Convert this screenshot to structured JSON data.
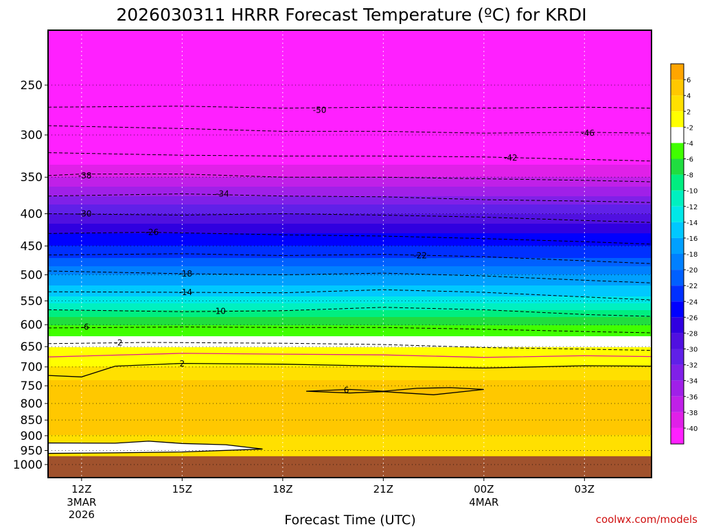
{
  "chart_data": {
    "type": "heatmap",
    "title": "2026030311 HRRR Forecast Temperature (ºC) for KRDI",
    "xlabel": "Forecast Time (UTC)",
    "ylabel": "",
    "credit": "coolwx.com/models",
    "y_scale": "log-pressure",
    "y_direction": "pressure decreasing upward",
    "ylim": [
      1050,
      200
    ],
    "y_ticks": [
      250,
      300,
      350,
      400,
      450,
      500,
      550,
      600,
      650,
      700,
      750,
      800,
      850,
      900,
      950,
      1000
    ],
    "x_ticks": [
      {
        "label": "12Z",
        "date_line1": "3MAR",
        "date_line2": "2026",
        "hours": 0
      },
      {
        "label": "15Z",
        "date_line1": "",
        "date_line2": "",
        "hours": 3
      },
      {
        "label": "18Z",
        "date_line1": "",
        "date_line2": "",
        "hours": 6
      },
      {
        "label": "21Z",
        "date_line1": "",
        "date_line2": "",
        "hours": 9
      },
      {
        "label": "00Z",
        "date_line1": "4MAR",
        "date_line2": "",
        "hours": 12
      },
      {
        "label": "03Z",
        "date_line1": "",
        "date_line2": "",
        "hours": 15
      }
    ],
    "xlim_hours": [
      -1,
      17
    ],
    "ground_pressure": 970,
    "grid": true,
    "colorbar": {
      "placement": "right",
      "levels": [
        "6",
        "4",
        "2",
        "-2",
        "-4",
        "-6",
        "-8",
        "-10",
        "-12",
        "-14",
        "-16",
        "-18",
        "-20",
        "-22",
        "-24",
        "-26",
        "-28",
        "-30",
        "-32",
        "-34",
        "-36",
        "-38",
        "-40"
      ],
      "colors": [
        "#ffa500",
        "#ffc800",
        "#ffe000",
        "#ffff00",
        "#ffffff",
        "#40ff00",
        "#20dd40",
        "#00ee80",
        "#00f0c0",
        "#00e8e8",
        "#00c8ff",
        "#00a0ff",
        "#0080ff",
        "#0060ff",
        "#0030ff",
        "#0000ff",
        "#3000e0",
        "#5010e0",
        "#6020e8",
        "#8020e8",
        "#a020e8",
        "#c020e8",
        "#e020e8",
        "#ff20ff"
      ]
    },
    "temperature_profile": [
      {
        "pressure": 1000,
        "temp": 4
      },
      {
        "pressure": 950,
        "temp": 3
      },
      {
        "pressure": 900,
        "temp": 4
      },
      {
        "pressure": 850,
        "temp": 4
      },
      {
        "pressure": 800,
        "temp": 4
      },
      {
        "pressure": 750,
        "temp": 5
      },
      {
        "pressure": 700,
        "temp": 2
      },
      {
        "pressure": 670,
        "temp": 0
      },
      {
        "pressure": 650,
        "temp": -2
      },
      {
        "pressure": 600,
        "temp": -6
      },
      {
        "pressure": 570,
        "temp": -10
      },
      {
        "pressure": 540,
        "temp": -14
      },
      {
        "pressure": 500,
        "temp": -18
      },
      {
        "pressure": 470,
        "temp": -22
      },
      {
        "pressure": 430,
        "temp": -26
      },
      {
        "pressure": 400,
        "temp": -30
      },
      {
        "pressure": 375,
        "temp": -34
      },
      {
        "pressure": 350,
        "temp": -38
      },
      {
        "pressure": 320,
        "temp": -42
      },
      {
        "pressure": 300,
        "temp": -46
      },
      {
        "pressure": 270,
        "temp": -50
      },
      {
        "pressure": 250,
        "temp": -52
      },
      {
        "pressure": 225,
        "temp": -54
      }
    ],
    "contours": [
      {
        "label": "-50",
        "dashed": true,
        "points": [
          [
            -1,
            271
          ],
          [
            3,
            270
          ],
          [
            6,
            272
          ],
          [
            9,
            271
          ],
          [
            12,
            272
          ],
          [
            15,
            271
          ],
          [
            17,
            272
          ]
        ],
        "label_at": [
          7.1,
          274
        ]
      },
      {
        "label": "-46",
        "dashed": true,
        "points": [
          [
            -1,
            290
          ],
          [
            3,
            293
          ],
          [
            6,
            296
          ],
          [
            9,
            296
          ],
          [
            12,
            298
          ],
          [
            15,
            297
          ],
          [
            17,
            298
          ]
        ],
        "label_at": [
          15.1,
          298
        ]
      },
      {
        "label": "-42",
        "dashed": true,
        "points": [
          [
            -1,
            320
          ],
          [
            3,
            323
          ],
          [
            6,
            324
          ],
          [
            9,
            324
          ],
          [
            12,
            325
          ],
          [
            15,
            328
          ],
          [
            17,
            330
          ]
        ],
        "label_at": [
          12.8,
          326
        ]
      },
      {
        "label": "-38",
        "dashed": true,
        "points": [
          [
            -1,
            348
          ],
          [
            0,
            346
          ],
          [
            3,
            346
          ],
          [
            6,
            350
          ],
          [
            9,
            350
          ],
          [
            12,
            352
          ],
          [
            15,
            354
          ],
          [
            17,
            356
          ]
        ],
        "label_at": [
          0.1,
          348
        ]
      },
      {
        "label": "-34",
        "dashed": true,
        "points": [
          [
            -1,
            375
          ],
          [
            3,
            372
          ],
          [
            6,
            375
          ],
          [
            9,
            376
          ],
          [
            12,
            380
          ],
          [
            15,
            382
          ],
          [
            17,
            384
          ]
        ],
        "label_at": [
          4.2,
          372
        ]
      },
      {
        "label": "-30",
        "dashed": true,
        "points": [
          [
            -1,
            400
          ],
          [
            3,
            402
          ],
          [
            6,
            400
          ],
          [
            9,
            402
          ],
          [
            12,
            405
          ],
          [
            15,
            410
          ],
          [
            17,
            413
          ]
        ],
        "label_at": [
          0.1,
          400
        ]
      },
      {
        "label": "-26",
        "dashed": true,
        "points": [
          [
            -1,
            430
          ],
          [
            2,
            428
          ],
          [
            6,
            432
          ],
          [
            9,
            434
          ],
          [
            12,
            438
          ],
          [
            15,
            443
          ],
          [
            17,
            447
          ]
        ],
        "label_at": [
          2.1,
          428
        ]
      },
      {
        "label": "-22",
        "dashed": true,
        "points": [
          [
            -1,
            465
          ],
          [
            3,
            463
          ],
          [
            6,
            466
          ],
          [
            9,
            464
          ],
          [
            12,
            468
          ],
          [
            15,
            475
          ],
          [
            17,
            480
          ]
        ],
        "label_at": [
          10.1,
          466
        ]
      },
      {
        "label": "-18",
        "dashed": true,
        "points": [
          [
            -1,
            493
          ],
          [
            3,
            498
          ],
          [
            6,
            500
          ],
          [
            9,
            497
          ],
          [
            12,
            502
          ],
          [
            15,
            510
          ],
          [
            17,
            515
          ]
        ],
        "label_at": [
          3.1,
          498
        ]
      },
      {
        "label": "-14",
        "dashed": true,
        "points": [
          [
            -1,
            532
          ],
          [
            3,
            533
          ],
          [
            6,
            534
          ],
          [
            9,
            528
          ],
          [
            12,
            533
          ],
          [
            15,
            542
          ],
          [
            17,
            548
          ]
        ],
        "label_at": [
          3.1,
          533
        ]
      },
      {
        "label": "-10",
        "dashed": true,
        "points": [
          [
            -1,
            568
          ],
          [
            3,
            572
          ],
          [
            6,
            570
          ],
          [
            9,
            563
          ],
          [
            12,
            568
          ],
          [
            15,
            578
          ],
          [
            17,
            582
          ]
        ],
        "label_at": [
          4.1,
          571
        ]
      },
      {
        "label": "-6",
        "dashed": true,
        "points": [
          [
            -1,
            607
          ],
          [
            3,
            605
          ],
          [
            6,
            606
          ],
          [
            9,
            606
          ],
          [
            12,
            610
          ],
          [
            15,
            615
          ],
          [
            17,
            618
          ]
        ],
        "label_at": [
          0.1,
          605
        ]
      },
      {
        "label": "-2",
        "dashed": true,
        "points": [
          [
            -1,
            643
          ],
          [
            2,
            640
          ],
          [
            6,
            642
          ],
          [
            9,
            645
          ],
          [
            12,
            652
          ],
          [
            15,
            656
          ],
          [
            17,
            659
          ]
        ],
        "label_at": [
          1.1,
          641
        ]
      },
      {
        "label": "0",
        "dashed": false,
        "color": "#e0208a",
        "points": [
          [
            -1,
            675
          ],
          [
            3,
            666
          ],
          [
            6,
            668
          ],
          [
            9,
            670
          ],
          [
            12,
            676
          ],
          [
            15,
            672
          ],
          [
            17,
            674
          ]
        ],
        "label_at": null
      },
      {
        "label": "2",
        "dashed": false,
        "points": [
          [
            -1,
            722
          ],
          [
            0,
            726
          ],
          [
            1,
            698
          ],
          [
            3,
            691
          ],
          [
            6,
            693
          ],
          [
            9,
            698
          ],
          [
            12,
            703
          ],
          [
            15,
            697
          ],
          [
            17,
            698
          ]
        ],
        "label_at": [
          3.0,
          692
        ]
      }
    ],
    "closed_contours": [
      {
        "label": "6",
        "dashed": false,
        "points": [
          [
            6.7,
            765
          ],
          [
            8,
            760
          ],
          [
            9,
            765
          ],
          [
            10,
            757
          ],
          [
            11,
            755
          ],
          [
            12,
            760
          ],
          [
            10.5,
            775
          ],
          [
            9,
            766
          ],
          [
            8,
            770
          ],
          [
            6.7,
            765
          ]
        ],
        "label_at": [
          7.9,
          762
        ]
      },
      {
        "label": "2",
        "dashed": false,
        "points": [
          [
            -1,
            924
          ],
          [
            1,
            925
          ],
          [
            2,
            918
          ],
          [
            3,
            926
          ],
          [
            4.3,
            930
          ],
          [
            5.4,
            945
          ],
          [
            3,
            955
          ],
          [
            1,
            958
          ],
          [
            -1,
            960
          ],
          [
            -1,
            924
          ]
        ],
        "label_at": null
      }
    ]
  }
}
